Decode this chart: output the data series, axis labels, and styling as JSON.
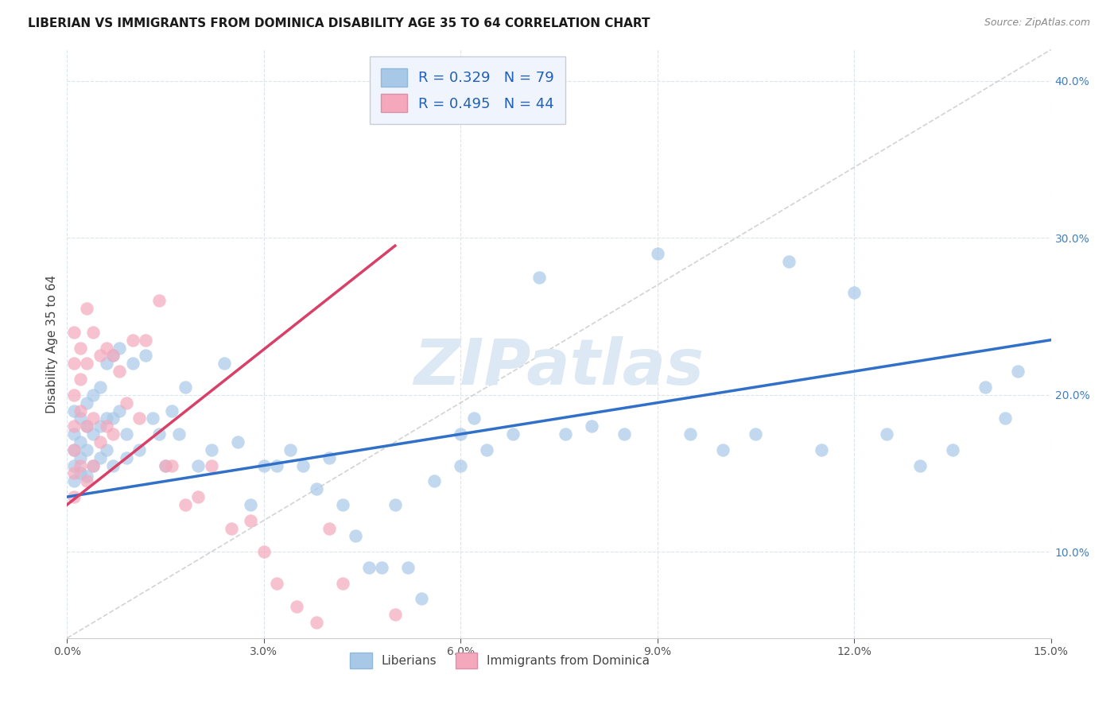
{
  "title": "LIBERIAN VS IMMIGRANTS FROM DOMINICA DISABILITY AGE 35 TO 64 CORRELATION CHART",
  "source": "Source: ZipAtlas.com",
  "ylabel": "Disability Age 35 to 64",
  "xlim": [
    0.0,
    0.15
  ],
  "ylim": [
    0.045,
    0.42
  ],
  "xticks": [
    0.0,
    0.03,
    0.06,
    0.09,
    0.12,
    0.15
  ],
  "yticks": [
    0.1,
    0.2,
    0.3,
    0.4
  ],
  "liberian_R": 0.329,
  "liberian_N": 79,
  "dominica_R": 0.495,
  "dominica_N": 44,
  "liberian_color": "#a8c8e8",
  "dominica_color": "#f5a8bc",
  "liberian_line_color": "#3070c8",
  "dominica_line_color": "#d84068",
  "ref_line_color": "#c8c8c8",
  "background_color": "#ffffff",
  "grid_color": "#dce4f0",
  "watermark": "ZIPatlas",
  "watermark_color": "#dce8f4",
  "blue_line_x0": 0.0,
  "blue_line_y0": 0.135,
  "blue_line_x1": 0.15,
  "blue_line_y1": 0.235,
  "pink_line_x0": 0.0,
  "pink_line_y0": 0.13,
  "pink_line_x1": 0.05,
  "pink_line_y1": 0.295,
  "ref_line_x0": 0.0,
  "ref_line_y0": 0.045,
  "ref_line_x1": 0.15,
  "ref_line_y1": 0.42,
  "liberian_x": [
    0.001,
    0.001,
    0.001,
    0.001,
    0.001,
    0.002,
    0.002,
    0.002,
    0.002,
    0.003,
    0.003,
    0.003,
    0.003,
    0.004,
    0.004,
    0.004,
    0.005,
    0.005,
    0.005,
    0.006,
    0.006,
    0.006,
    0.007,
    0.007,
    0.007,
    0.008,
    0.008,
    0.009,
    0.009,
    0.01,
    0.011,
    0.012,
    0.013,
    0.014,
    0.015,
    0.016,
    0.017,
    0.018,
    0.02,
    0.022,
    0.024,
    0.026,
    0.028,
    0.03,
    0.032,
    0.034,
    0.036,
    0.038,
    0.04,
    0.042,
    0.044,
    0.046,
    0.048,
    0.05,
    0.052,
    0.054,
    0.056,
    0.06,
    0.062,
    0.064,
    0.068,
    0.072,
    0.076,
    0.08,
    0.085,
    0.09,
    0.095,
    0.1,
    0.105,
    0.11,
    0.115,
    0.12,
    0.125,
    0.13,
    0.135,
    0.14,
    0.143,
    0.145,
    0.06
  ],
  "liberian_y": [
    0.19,
    0.175,
    0.165,
    0.155,
    0.145,
    0.185,
    0.17,
    0.16,
    0.15,
    0.195,
    0.18,
    0.165,
    0.148,
    0.2,
    0.175,
    0.155,
    0.205,
    0.18,
    0.16,
    0.22,
    0.185,
    0.165,
    0.225,
    0.185,
    0.155,
    0.23,
    0.19,
    0.175,
    0.16,
    0.22,
    0.165,
    0.225,
    0.185,
    0.175,
    0.155,
    0.19,
    0.175,
    0.205,
    0.155,
    0.165,
    0.22,
    0.17,
    0.13,
    0.155,
    0.155,
    0.165,
    0.155,
    0.14,
    0.16,
    0.13,
    0.11,
    0.09,
    0.09,
    0.13,
    0.09,
    0.07,
    0.145,
    0.155,
    0.185,
    0.165,
    0.175,
    0.275,
    0.175,
    0.18,
    0.175,
    0.29,
    0.175,
    0.165,
    0.175,
    0.285,
    0.165,
    0.265,
    0.175,
    0.155,
    0.165,
    0.205,
    0.185,
    0.215,
    0.175
  ],
  "dominica_x": [
    0.001,
    0.001,
    0.001,
    0.001,
    0.001,
    0.001,
    0.001,
    0.002,
    0.002,
    0.002,
    0.002,
    0.003,
    0.003,
    0.003,
    0.003,
    0.004,
    0.004,
    0.004,
    0.005,
    0.005,
    0.006,
    0.006,
    0.007,
    0.007,
    0.008,
    0.009,
    0.01,
    0.011,
    0.012,
    0.014,
    0.015,
    0.016,
    0.018,
    0.02,
    0.022,
    0.025,
    0.028,
    0.03,
    0.032,
    0.035,
    0.038,
    0.04,
    0.042,
    0.05
  ],
  "dominica_y": [
    0.24,
    0.22,
    0.2,
    0.18,
    0.165,
    0.15,
    0.135,
    0.23,
    0.21,
    0.19,
    0.155,
    0.255,
    0.22,
    0.18,
    0.145,
    0.24,
    0.185,
    0.155,
    0.225,
    0.17,
    0.23,
    0.18,
    0.225,
    0.175,
    0.215,
    0.195,
    0.235,
    0.185,
    0.235,
    0.26,
    0.155,
    0.155,
    0.13,
    0.135,
    0.155,
    0.115,
    0.12,
    0.1,
    0.08,
    0.065,
    0.055,
    0.115,
    0.08,
    0.06
  ]
}
